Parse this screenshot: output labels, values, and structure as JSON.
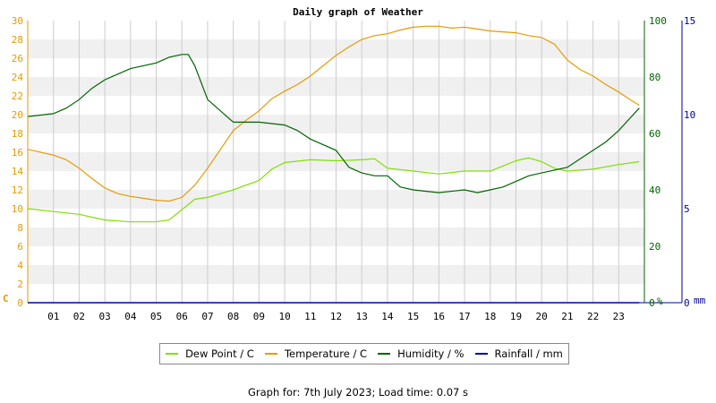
{
  "chart_data": {
    "type": "line",
    "title": "Daily graph of Weather",
    "x_ticks": [
      "01",
      "02",
      "03",
      "04",
      "05",
      "06",
      "07",
      "08",
      "09",
      "10",
      "11",
      "12",
      "13",
      "14",
      "15",
      "16",
      "17",
      "18",
      "19",
      "20",
      "21",
      "22",
      "23"
    ],
    "x_range_hours": [
      0,
      24
    ],
    "axes": {
      "temperature": {
        "unit": "C",
        "range": [
          0,
          30
        ],
        "ticks": [
          0,
          2,
          4,
          6,
          8,
          10,
          12,
          14,
          16,
          18,
          20,
          22,
          24,
          26,
          28,
          30
        ],
        "color": "#e69a00"
      },
      "humidity": {
        "unit": "%",
        "range": [
          0,
          100
        ],
        "ticks": [
          0,
          20,
          40,
          60,
          80,
          100
        ],
        "color": "#006400"
      },
      "rainfall": {
        "unit": "mm",
        "range": [
          0,
          15
        ],
        "ticks": [
          0,
          5,
          10,
          15
        ],
        "color": "#00009c"
      }
    },
    "grid": true,
    "legend_position": "bottom",
    "series": [
      {
        "name": "Dew Point / C",
        "axis": "temperature",
        "color": "#7fe000",
        "x": [
          0,
          1,
          2,
          3,
          4,
          5,
          5.5,
          6,
          6.5,
          7,
          8,
          9,
          9.5,
          10,
          11,
          12,
          13,
          13.5,
          14,
          15,
          16,
          17,
          18,
          19,
          19.5,
          20,
          20.5,
          21,
          22,
          23,
          23.8
        ],
        "y": [
          10,
          9.7,
          9.4,
          8.8,
          8.6,
          8.6,
          8.8,
          9.9,
          11,
          11.2,
          12,
          13,
          14.2,
          14.9,
          15.2,
          15.1,
          15.2,
          15.3,
          14.3,
          14,
          13.7,
          14,
          14,
          15.1,
          15.4,
          15,
          14.3,
          14,
          14.2,
          14.7,
          15
        ]
      },
      {
        "name": "Temperature / C",
        "axis": "temperature",
        "color": "#e69a00",
        "x": [
          0,
          1,
          1.5,
          2,
          2.5,
          3,
          3.5,
          4,
          4.5,
          5,
          5.5,
          6,
          6.5,
          7,
          7.5,
          8,
          8.5,
          9,
          9.5,
          10,
          10.5,
          11,
          11.5,
          12,
          12.5,
          13,
          13.5,
          14,
          14.5,
          15,
          15.5,
          16,
          16.5,
          17,
          17.5,
          18,
          18.5,
          19,
          19.5,
          20,
          20.5,
          21,
          21.5,
          22,
          22.5,
          23,
          23.5,
          23.8
        ],
        "y": [
          16.3,
          15.7,
          15.2,
          14.3,
          13.2,
          12.2,
          11.6,
          11.3,
          11.1,
          10.9,
          10.8,
          11.2,
          12.5,
          14.3,
          16.3,
          18.3,
          19.4,
          20.4,
          21.7,
          22.5,
          23.2,
          24.1,
          25.2,
          26.3,
          27.2,
          28,
          28.4,
          28.6,
          29,
          29.3,
          29.4,
          29.4,
          29.2,
          29.3,
          29.1,
          28.9,
          28.8,
          28.7,
          28.4,
          28.2,
          27.5,
          25.8,
          24.8,
          24.1,
          23.2,
          22.4,
          21.5,
          21
        ]
      },
      {
        "name": "Humidity / %",
        "axis": "humidity",
        "color": "#006400",
        "x": [
          0,
          1,
          1.5,
          2,
          2.5,
          3,
          3.5,
          4,
          5,
          5.5,
          6,
          6.25,
          6.5,
          7,
          7.5,
          8,
          9,
          10,
          10.5,
          11,
          11.5,
          12,
          12.5,
          13,
          13.5,
          14,
          14.5,
          15,
          16,
          17,
          17.5,
          18,
          18.5,
          19,
          19.5,
          20,
          21,
          22,
          22.5,
          23,
          23.5,
          23.8
        ],
        "y": [
          66,
          67,
          69,
          72,
          76,
          79,
          81,
          83,
          85,
          87,
          88,
          88,
          84,
          72,
          68,
          64,
          64,
          63,
          61,
          58,
          56,
          54,
          48,
          46,
          45,
          45,
          41,
          40,
          39,
          40,
          39,
          40,
          41,
          43,
          45,
          46,
          48,
          54,
          57,
          61,
          66,
          69
        ]
      },
      {
        "name": "Rainfall / mm",
        "axis": "rainfall",
        "color": "#00009c",
        "x": [
          0,
          23.8
        ],
        "y": [
          0,
          0
        ]
      }
    ]
  },
  "axis_units": {
    "left": "C",
    "right_humidity": "%",
    "right_rainfall": "mm"
  },
  "footer": "Graph for: 7th July 2023; Load time: 0.07 s"
}
